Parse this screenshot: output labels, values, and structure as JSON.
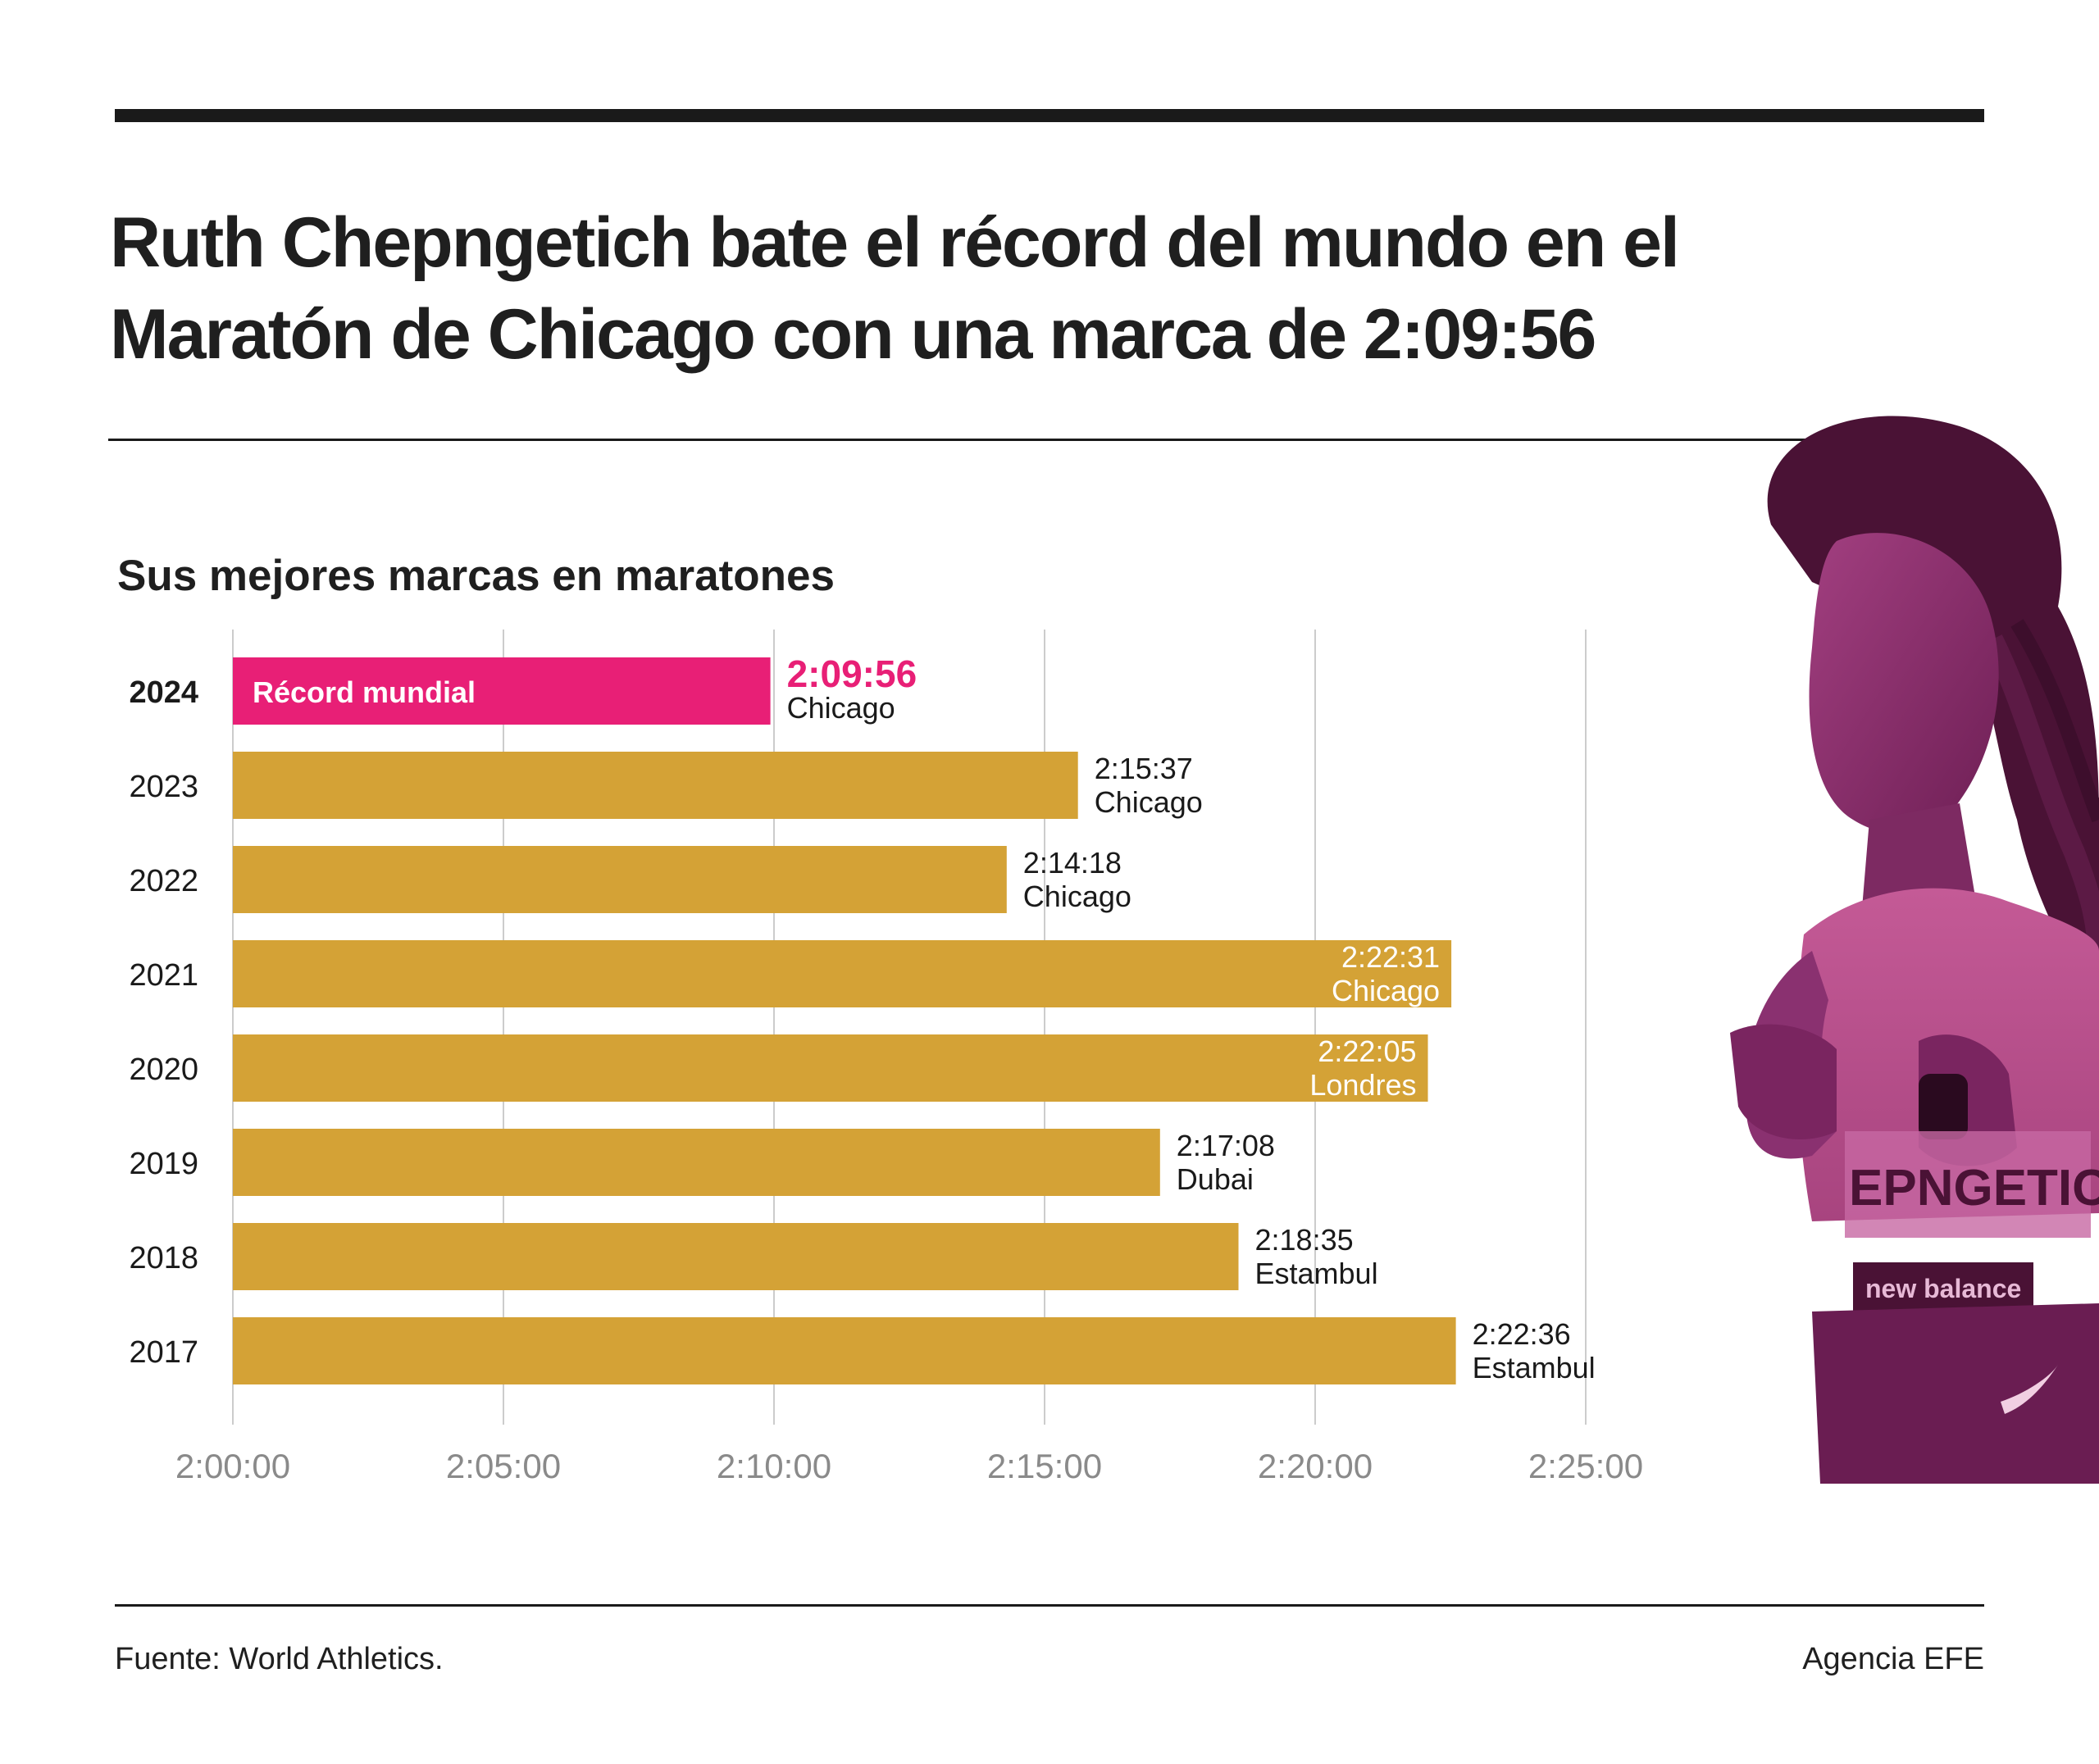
{
  "title": "Ruth Chepngetich bate el récord del mundo en el Maratón de Chicago con una marca de 2:09:56",
  "subtitle": "Sus mejores marcas en maratones",
  "source": "Fuente: World Athletics.",
  "credit": "Agencia EFE",
  "colors": {
    "record": "#e81f76",
    "bar": "#d4a236",
    "grid": "#cccccc",
    "tick_text": "#8a8a8a",
    "photo_tint": "#8b2a6a"
  },
  "photo": {
    "icon": "runner-photo-icon",
    "bib_text": "EPNGETICH",
    "sponsor_text": "new balance"
  },
  "chart_data": {
    "type": "bar",
    "orientation": "horizontal",
    "title": "Sus mejores marcas en maratones",
    "xlabel": "",
    "ylabel": "",
    "x_unit": "h:mm:ss",
    "xlim": [
      "2:00:00",
      "2:25:00"
    ],
    "xticks": [
      "2:00:00",
      "2:05:00",
      "2:10:00",
      "2:15:00",
      "2:20:00",
      "2:25:00"
    ],
    "grid": true,
    "categories": [
      "2024",
      "2023",
      "2022",
      "2021",
      "2020",
      "2019",
      "2018",
      "2017"
    ],
    "values": [
      "2:09:56",
      "2:15:37",
      "2:14:18",
      "2:22:31",
      "2:22:05",
      "2:17:08",
      "2:18:35",
      "2:22:36"
    ],
    "locations": [
      "Chicago",
      "Chicago",
      "Chicago",
      "Chicago",
      "Londres",
      "Dubai",
      "Estambul",
      "Estambul"
    ],
    "highlight": {
      "category": "2024",
      "label": "Récord mundial"
    },
    "labels_inside": [
      "2021",
      "2020"
    ]
  }
}
